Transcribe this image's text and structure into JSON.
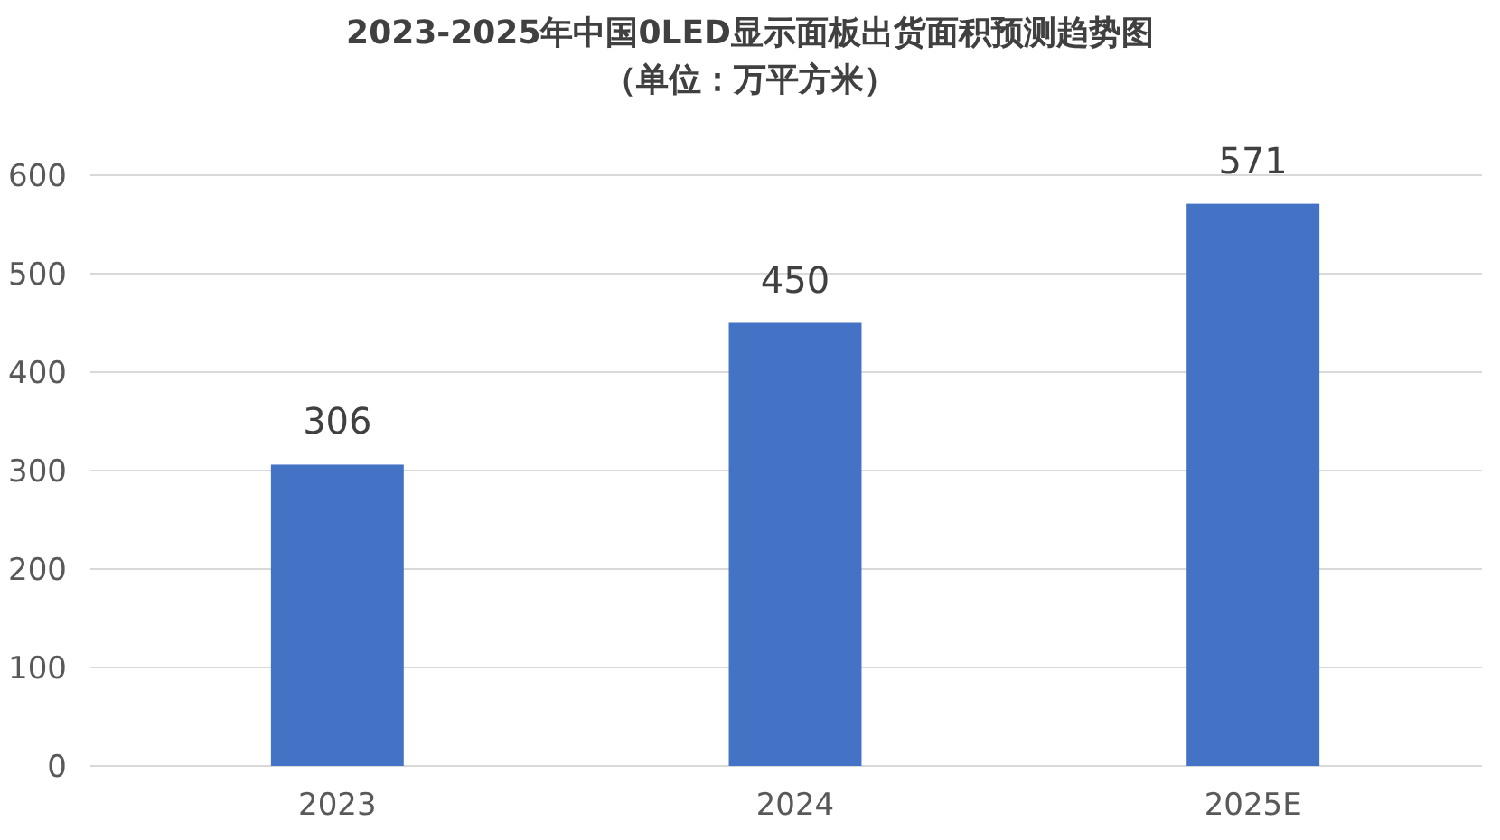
{
  "chart_data": {
    "type": "bar",
    "title": "2023-2025年中国0LED显示面板出货面积预测趋势图",
    "subtitle": "（单位：万平方米）",
    "categories": [
      "2023",
      "2024",
      "2025E"
    ],
    "values": [
      306,
      450,
      571
    ],
    "color": "#4472c4",
    "ylim": [
      0,
      600
    ],
    "yticks": [
      0,
      100,
      200,
      300,
      400,
      500,
      600
    ],
    "grid": "y",
    "data_labels": true
  }
}
